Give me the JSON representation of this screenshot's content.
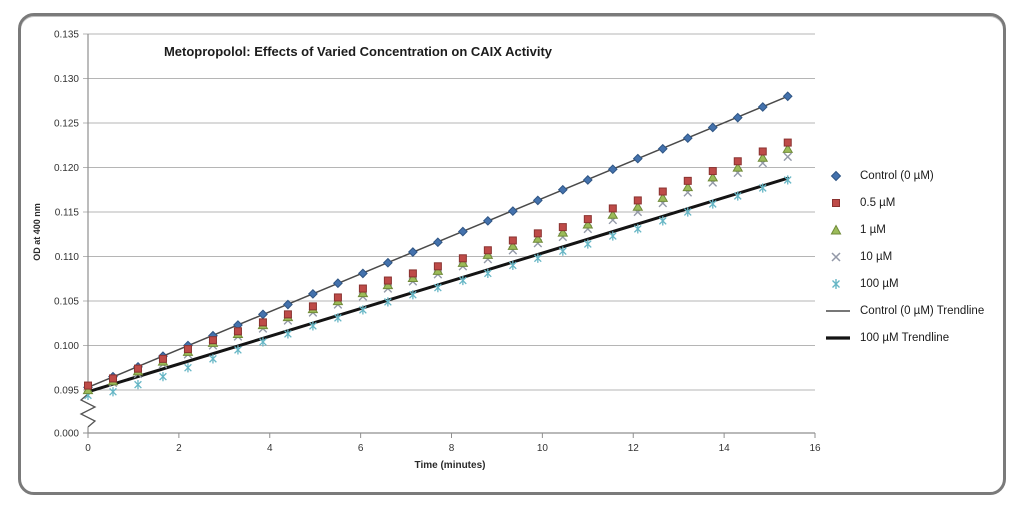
{
  "figure": {
    "border_color": "#7a7a7a",
    "background": "#ffffff"
  },
  "chart_data": {
    "type": "scatter",
    "title": "Metopropolol: Effects of Varied Concentration on CAIX Activity",
    "xlabel": "Time (minutes)",
    "ylabel": "OD at 400 nm",
    "xlim": [
      0,
      16
    ],
    "x_ticks": [
      0,
      2,
      4,
      6,
      8,
      10,
      12,
      14,
      16
    ],
    "y_tick_labels": [
      "0.135",
      "0.130",
      "0.125",
      "0.120",
      "0.115",
      "0.110",
      "0.105",
      "0.100",
      "0.095"
    ],
    "y_tick_values": [
      0.135,
      0.13,
      0.125,
      0.12,
      0.115,
      0.11,
      0.105,
      0.1,
      0.095
    ],
    "y_break_label": "0.000",
    "ylim_display": [
      0.095,
      0.135
    ],
    "grid": true,
    "gridline_color": "#b5b5b5",
    "axis_color": "#8f8f8f",
    "legend_position": "right",
    "x": [
      0,
      0.55,
      1.1,
      1.65,
      2.2,
      2.75,
      3.3,
      3.85,
      4.4,
      4.95,
      5.5,
      6.05,
      6.6,
      7.15,
      7.7,
      8.25,
      8.8,
      9.35,
      9.9,
      10.45,
      11,
      11.55,
      12.1,
      12.65,
      13.2,
      13.75,
      14.3,
      14.85,
      15.4
    ],
    "series": [
      {
        "name": "Control (0 µM)",
        "marker": "diamond",
        "color": "#4472ad",
        "edge": "#2f5584",
        "values": [
          0.0953,
          0.0965,
          0.0976,
          0.0988,
          0.1,
          0.1011,
          0.1023,
          0.1035,
          0.1046,
          0.1058,
          0.107,
          0.1081,
          0.1093,
          0.1105,
          0.1116,
          0.1128,
          0.114,
          0.1151,
          0.1163,
          0.1175,
          0.1186,
          0.1198,
          0.121,
          0.1221,
          0.1233,
          0.1245,
          0.1256,
          0.1268,
          0.128
        ]
      },
      {
        "name": "0.5 µM",
        "marker": "square",
        "color": "#be4b48",
        "edge": "#8a3230",
        "values": [
          0.0955,
          0.0963,
          0.0974,
          0.0985,
          0.0996,
          0.1006,
          0.1016,
          0.1026,
          0.1035,
          0.1044,
          0.1054,
          0.1064,
          0.1073,
          0.1081,
          0.1089,
          0.1098,
          0.1107,
          0.1118,
          0.1126,
          0.1133,
          0.1142,
          0.1154,
          0.1163,
          0.1173,
          0.1185,
          0.1196,
          0.1207,
          0.1218,
          0.1228
        ]
      },
      {
        "name": "1 µM",
        "marker": "triangle",
        "color": "#9bbb59",
        "edge": "#6f8a38",
        "values": [
          0.095,
          0.096,
          0.0971,
          0.0982,
          0.0993,
          0.1003,
          0.1013,
          0.1023,
          0.1032,
          0.1041,
          0.105,
          0.1059,
          0.1068,
          0.1076,
          0.1084,
          0.1093,
          0.1102,
          0.1112,
          0.112,
          0.1127,
          0.1136,
          0.1147,
          0.1156,
          0.1166,
          0.1178,
          0.1189,
          0.12,
          0.1211,
          0.1221
        ]
      },
      {
        "name": "10 µM",
        "marker": "x",
        "color": "#9399a8",
        "edge": "#9399a8",
        "values": [
          0.0952,
          0.0958,
          0.0968,
          0.0979,
          0.099,
          0.1,
          0.101,
          0.1019,
          0.1028,
          0.1037,
          0.1046,
          0.1055,
          0.1064,
          0.1072,
          0.108,
          0.1089,
          0.1097,
          0.1107,
          0.1115,
          0.1122,
          0.1131,
          0.1141,
          0.115,
          0.116,
          0.1172,
          0.1183,
          0.1194,
          0.1205,
          0.1212
        ]
      },
      {
        "name": "100 µM",
        "marker": "asterisk",
        "color": "#66b6c5",
        "edge": "#66b6c5",
        "values": [
          0.0944,
          0.0948,
          0.0956,
          0.0965,
          0.0975,
          0.0985,
          0.0995,
          0.1004,
          0.1013,
          0.1022,
          0.1031,
          0.104,
          0.1049,
          0.1057,
          0.1065,
          0.1073,
          0.1081,
          0.109,
          0.1098,
          0.1106,
          0.1114,
          0.1123,
          0.1131,
          0.114,
          0.115,
          0.1159,
          0.1168,
          0.1177,
          0.1186
        ]
      }
    ],
    "trendlines": [
      {
        "name": "Control (0 µM) Trendline",
        "x1": 0,
        "y1": 0.0953,
        "x2": 15.4,
        "y2": 0.128,
        "color": "#4a4a4a",
        "width": 1.5
      },
      {
        "name": "100 µM Trendline",
        "x1": 0,
        "y1": 0.0948,
        "x2": 15.4,
        "y2": 0.1188,
        "color": "#141414",
        "width": 3
      }
    ],
    "legend": [
      {
        "label": "Control (0 µM)",
        "swatch": "diamond",
        "color": "#4472ad",
        "edge": "#2f5584"
      },
      {
        "label": "0.5 µM",
        "swatch": "square",
        "color": "#be4b48",
        "edge": "#8a3230"
      },
      {
        "label": "1 µM",
        "swatch": "triangle",
        "color": "#9bbb59",
        "edge": "#6f8a38"
      },
      {
        "label": "10 µM",
        "swatch": "x",
        "color": "#9399a8",
        "edge": "#9399a8"
      },
      {
        "label": "100 µM",
        "swatch": "asterisk",
        "color": "#66b6c5",
        "edge": "#66b6c5"
      },
      {
        "label": "Control (0 µM) Trendline",
        "swatch": "thin-line",
        "color": "#4a4a4a",
        "edge": "#4a4a4a"
      },
      {
        "label": "100 µM Trendline",
        "swatch": "thick-line",
        "color": "#141414",
        "edge": "#141414"
      }
    ]
  }
}
